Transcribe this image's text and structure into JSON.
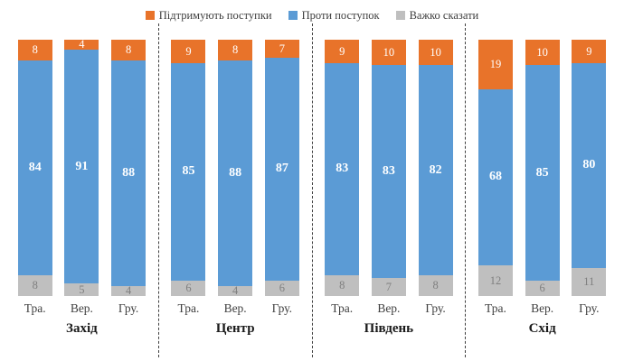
{
  "chart_data": {
    "type": "bar",
    "stacked": true,
    "orientation": "vertical",
    "ylim": [
      0,
      100
    ],
    "legend_position": "top",
    "series": [
      {
        "name": "Підтримують поступки",
        "color": "#E8732A",
        "label_color": "#FFFFFF"
      },
      {
        "name": "Проти поступок",
        "color": "#5B9BD5",
        "label_color": "#FFFFFF"
      },
      {
        "name": "Важко сказати",
        "color": "#BFBFBF",
        "label_color": "#7F7F7F"
      }
    ],
    "groups": [
      {
        "label": "Захід",
        "categories": [
          "Тра.",
          "Вер.",
          "Гру."
        ],
        "values": [
          [
            8,
            84,
            8
          ],
          [
            4,
            91,
            5
          ],
          [
            8,
            88,
            4
          ]
        ]
      },
      {
        "label": "Центр",
        "categories": [
          "Тра.",
          "Вер.",
          "Гру."
        ],
        "values": [
          [
            9,
            85,
            6
          ],
          [
            8,
            88,
            4
          ],
          [
            7,
            87,
            6
          ]
        ]
      },
      {
        "label": "Південь",
        "categories": [
          "Тра.",
          "Вер.",
          "Гру."
        ],
        "values": [
          [
            9,
            83,
            8
          ],
          [
            10,
            83,
            7
          ],
          [
            10,
            82,
            8
          ]
        ]
      },
      {
        "label": "Схід",
        "categories": [
          "Тра.",
          "Вер.",
          "Гру."
        ],
        "values": [
          [
            19,
            68,
            12
          ],
          [
            10,
            85,
            6
          ],
          [
            9,
            80,
            11
          ]
        ]
      }
    ]
  }
}
